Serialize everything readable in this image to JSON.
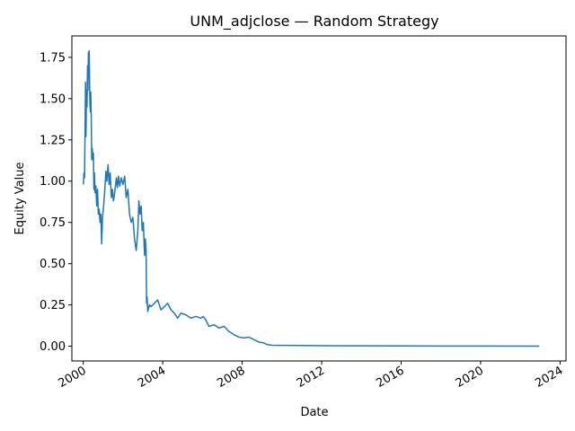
{
  "chart_data": {
    "type": "line",
    "title": "UNM_adjclose — Random Strategy",
    "xlabel": "Date",
    "ylabel": "Equity Value",
    "xlim": [
      "1999-06-06",
      "2024-04-19"
    ],
    "ylim": [
      -0.0895,
      1.88
    ],
    "x_ticks": [
      {
        "date": "2000-01-01",
        "label": "2000"
      },
      {
        "date": "2004-01-01",
        "label": "2004"
      },
      {
        "date": "2008-01-01",
        "label": "2008"
      },
      {
        "date": "2012-01-01",
        "label": "2012"
      },
      {
        "date": "2016-01-01",
        "label": "2016"
      },
      {
        "date": "2020-01-01",
        "label": "2020"
      },
      {
        "date": "2024-01-01",
        "label": "2024"
      }
    ],
    "y_ticks": [
      0.0,
      0.25,
      0.5,
      0.75,
      1.0,
      1.25,
      1.5,
      1.75
    ],
    "y_tick_labels": [
      "0.00",
      "0.25",
      "0.50",
      "0.75",
      "1.00",
      "1.25",
      "1.50",
      "1.75"
    ],
    "grid": false,
    "color": "#1f77b4",
    "series": [
      {
        "points": [
          [
            "2000-01-03",
            0.98
          ],
          [
            "2000-01-14",
            1.05
          ],
          [
            "2000-01-25",
            1.02
          ],
          [
            "2000-02-05",
            1.35
          ],
          [
            "2000-02-12",
            1.6
          ],
          [
            "2000-02-20",
            1.27
          ],
          [
            "2000-03-01",
            1.55
          ],
          [
            "2000-03-10",
            1.45
          ],
          [
            "2000-03-20",
            1.7
          ],
          [
            "2000-03-28",
            1.55
          ],
          [
            "2000-04-05",
            1.78
          ],
          [
            "2000-04-12",
            1.62
          ],
          [
            "2000-04-20",
            1.79
          ],
          [
            "2000-05-01",
            1.5
          ],
          [
            "2000-05-10",
            1.42
          ],
          [
            "2000-05-18",
            1.54
          ],
          [
            "2000-05-28",
            1.38
          ],
          [
            "2000-06-05",
            1.13
          ],
          [
            "2000-06-15",
            1.2
          ],
          [
            "2000-06-25",
            1.13
          ],
          [
            "2000-07-05",
            1.17
          ],
          [
            "2000-07-15",
            0.95
          ],
          [
            "2000-07-25",
            1.05
          ],
          [
            "2000-08-05",
            0.93
          ],
          [
            "2000-08-20",
            0.97
          ],
          [
            "2000-09-05",
            0.85
          ],
          [
            "2000-09-20",
            0.95
          ],
          [
            "2000-10-05",
            0.8
          ],
          [
            "2000-10-20",
            0.83
          ],
          [
            "2000-11-05",
            0.75
          ],
          [
            "2000-11-20",
            0.8
          ],
          [
            "2000-12-05",
            0.62
          ],
          [
            "2000-12-20",
            0.78
          ],
          [
            "2001-01-10",
            0.85
          ],
          [
            "2001-02-01",
            0.95
          ],
          [
            "2001-02-20",
            1.06
          ],
          [
            "2001-03-10",
            1.0
          ],
          [
            "2001-04-01",
            1.1
          ],
          [
            "2001-04-20",
            0.98
          ],
          [
            "2001-05-10",
            1.05
          ],
          [
            "2001-06-01",
            0.9
          ],
          [
            "2001-06-20",
            0.95
          ],
          [
            "2001-07-10",
            0.88
          ],
          [
            "2001-08-01",
            0.93
          ],
          [
            "2001-09-01",
            1.02
          ],
          [
            "2001-09-20",
            0.96
          ],
          [
            "2001-10-10",
            1.03
          ],
          [
            "2001-11-01",
            0.97
          ],
          [
            "2001-12-01",
            1.02
          ],
          [
            "2002-01-01",
            0.98
          ],
          [
            "2002-02-01",
            1.03
          ],
          [
            "2002-03-01",
            0.9
          ],
          [
            "2002-04-01",
            0.95
          ],
          [
            "2002-05-01",
            0.8
          ],
          [
            "2002-06-01",
            0.75
          ],
          [
            "2002-07-01",
            0.78
          ],
          [
            "2002-08-01",
            0.65
          ],
          [
            "2002-09-01",
            0.58
          ],
          [
            "2002-10-01",
            0.7
          ],
          [
            "2002-10-20",
            0.88
          ],
          [
            "2002-11-10",
            0.8
          ],
          [
            "2002-12-01",
            0.85
          ],
          [
            "2002-12-20",
            0.7
          ],
          [
            "2003-01-10",
            0.75
          ],
          [
            "2003-02-01",
            0.55
          ],
          [
            "2003-02-15",
            0.65
          ],
          [
            "2003-03-01",
            0.58
          ],
          [
            "2003-03-10",
            0.26
          ],
          [
            "2003-03-20",
            0.3
          ],
          [
            "2003-04-01",
            0.21
          ],
          [
            "2003-05-01",
            0.25
          ],
          [
            "2003-06-01",
            0.24
          ],
          [
            "2003-08-01",
            0.26
          ],
          [
            "2003-10-01",
            0.28
          ],
          [
            "2003-12-01",
            0.22
          ],
          [
            "2004-02-01",
            0.24
          ],
          [
            "2004-04-01",
            0.26
          ],
          [
            "2004-06-01",
            0.22
          ],
          [
            "2004-08-01",
            0.2
          ],
          [
            "2004-10-01",
            0.17
          ],
          [
            "2004-12-01",
            0.2
          ],
          [
            "2005-03-01",
            0.19
          ],
          [
            "2005-06-01",
            0.17
          ],
          [
            "2005-09-01",
            0.18
          ],
          [
            "2005-12-01",
            0.17
          ],
          [
            "2006-01-15",
            0.18
          ],
          [
            "2006-03-01",
            0.16
          ],
          [
            "2006-05-01",
            0.12
          ],
          [
            "2006-08-01",
            0.13
          ],
          [
            "2006-11-01",
            0.11
          ],
          [
            "2007-02-01",
            0.12
          ],
          [
            "2007-05-01",
            0.09
          ],
          [
            "2007-08-01",
            0.07
          ],
          [
            "2007-11-01",
            0.055
          ],
          [
            "2008-02-01",
            0.05
          ],
          [
            "2008-05-01",
            0.055
          ],
          [
            "2008-08-01",
            0.04
          ],
          [
            "2008-11-01",
            0.025
          ],
          [
            "2009-02-01",
            0.02
          ],
          [
            "2009-04-01",
            0.01
          ],
          [
            "2009-07-01",
            0.006
          ],
          [
            "2010-01-01",
            0.005
          ],
          [
            "2011-01-01",
            0.004
          ],
          [
            "2012-01-01",
            0.003
          ],
          [
            "2014-01-01",
            0.002
          ],
          [
            "2016-01-01",
            0.0015
          ],
          [
            "2018-01-01",
            0.001
          ],
          [
            "2020-01-01",
            0.0008
          ],
          [
            "2022-12-15",
            0.0005
          ]
        ]
      }
    ]
  }
}
